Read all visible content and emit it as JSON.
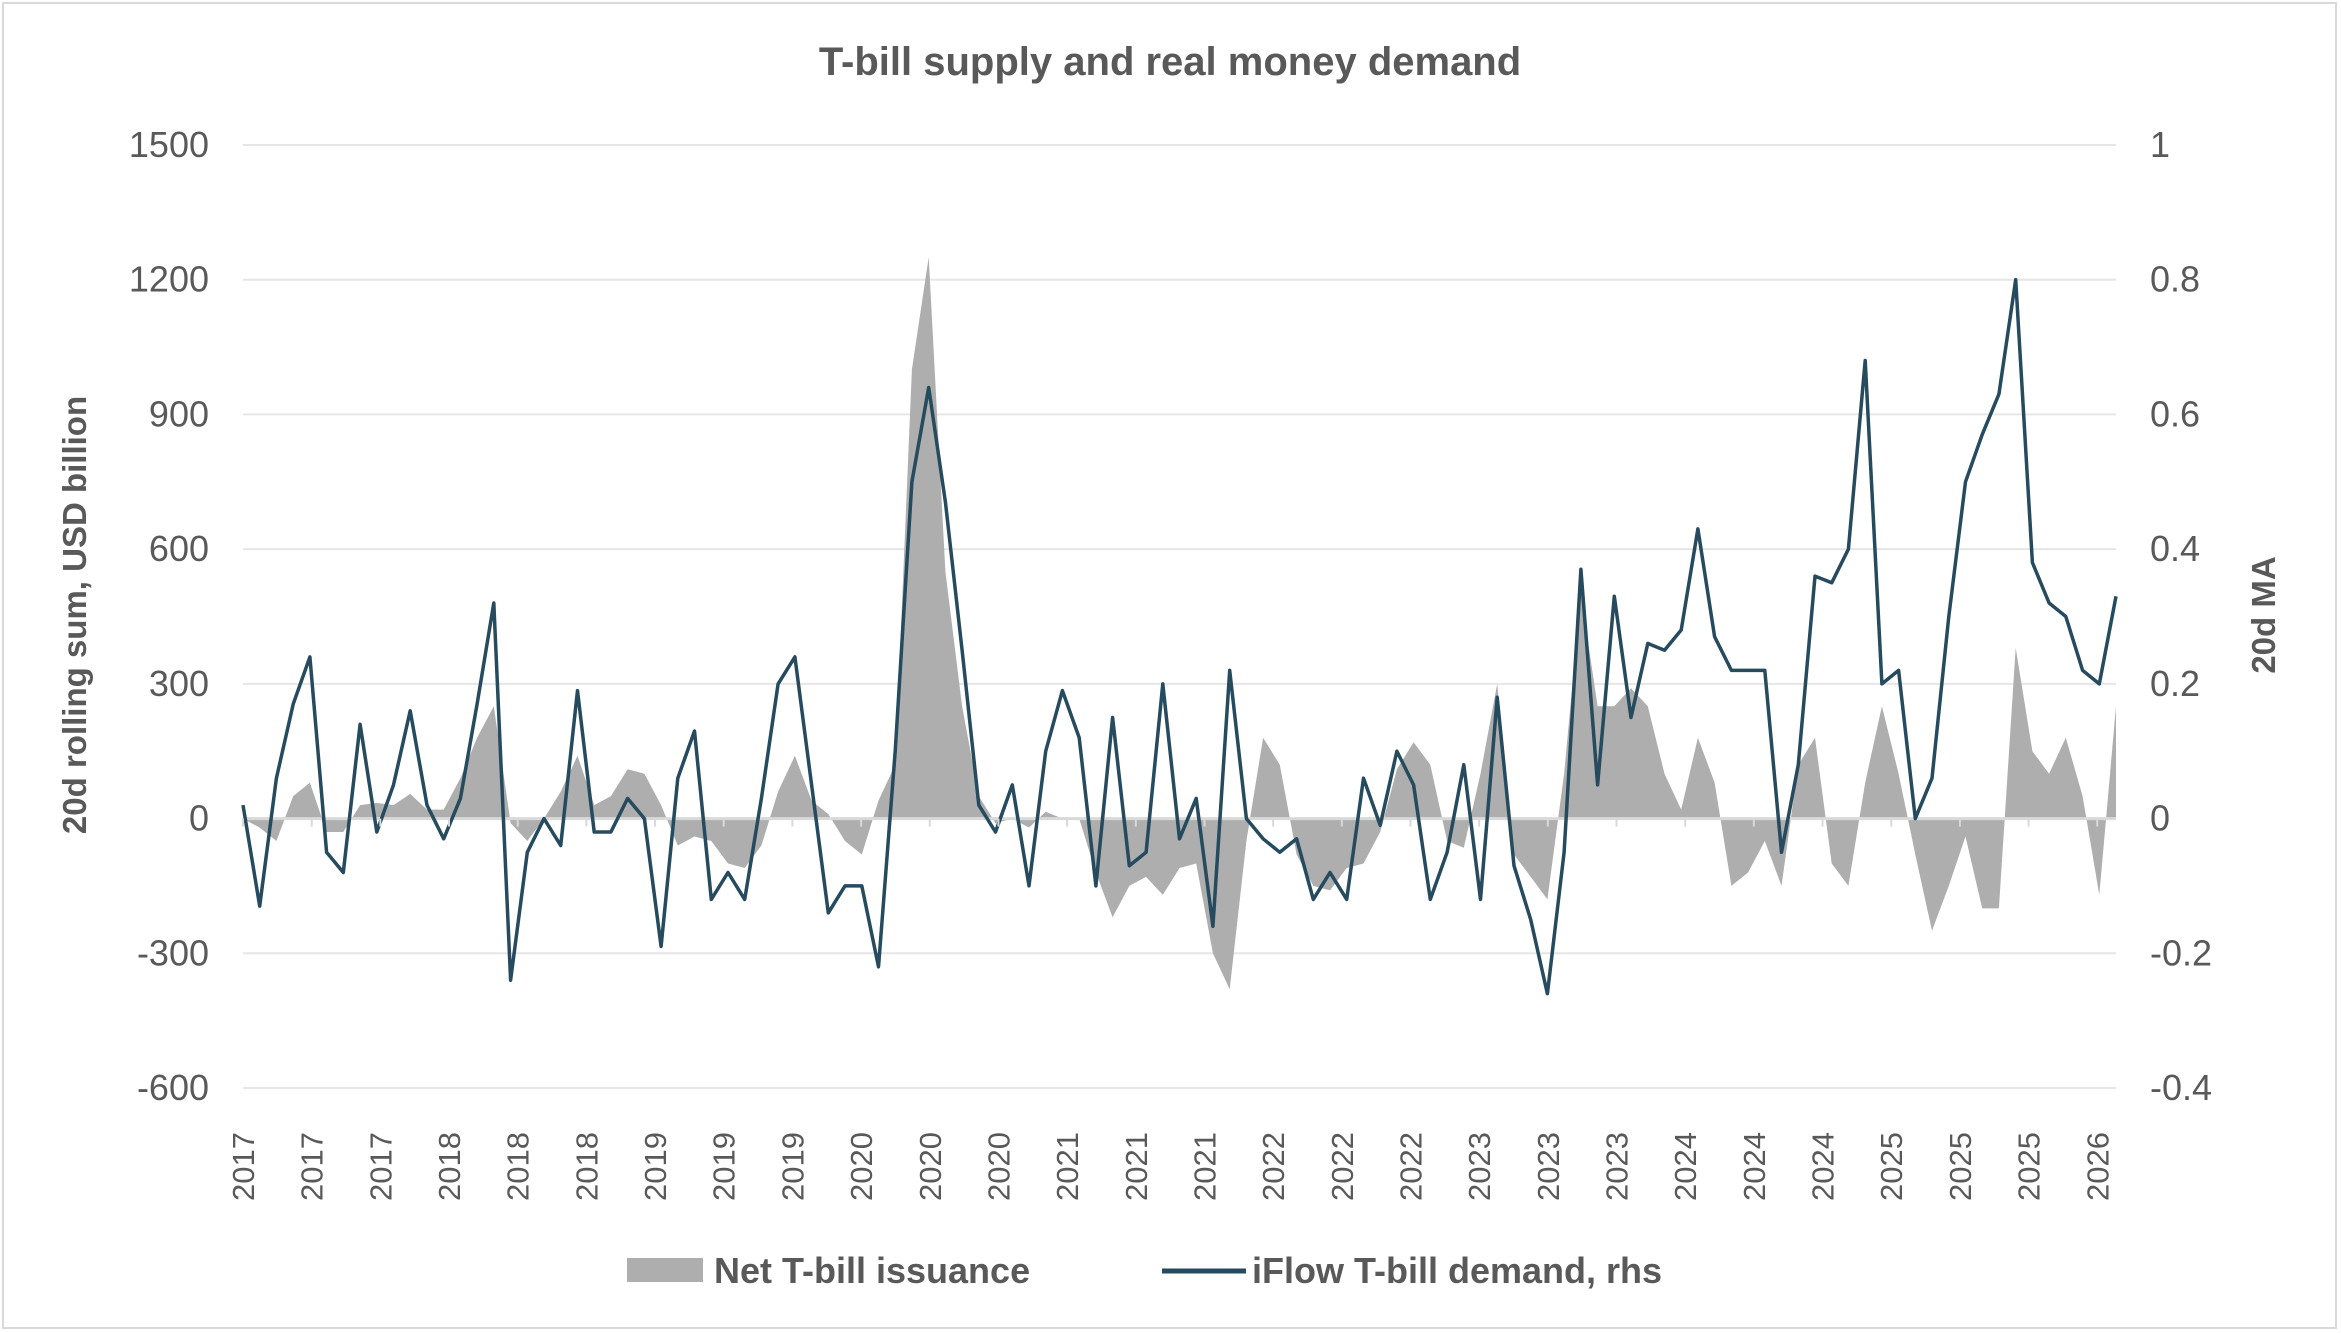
{
  "chart_data": {
    "type": "area+line",
    "title": "T-bill supply and real money demand",
    "ylabel": "20d rolling sum, USD billion",
    "y2label": "20d MA",
    "ylim": [
      -600,
      1500
    ],
    "yticks": [
      -600,
      -300,
      0,
      300,
      600,
      900,
      1200,
      1500
    ],
    "y2lim": [
      -0.4,
      1
    ],
    "y2ticks": [
      -0.4,
      -0.2,
      0,
      0.2,
      0.4,
      0.6,
      0.8,
      1
    ],
    "y2tick_labels": [
      "-0.4",
      "-0.2",
      "0",
      "0.2",
      "0.4",
      "0.6",
      "0.8",
      "1"
    ],
    "xtick_labels": [
      "2017",
      "2017",
      "2017",
      "2018",
      "2018",
      "2018",
      "2019",
      "2019",
      "2019",
      "2020",
      "2020",
      "2020",
      "2021",
      "2021",
      "2021",
      "2022",
      "2022",
      "2022",
      "2023",
      "2023",
      "2023",
      "2024",
      "2024",
      "2024",
      "2025",
      "2025",
      "2025",
      "2026"
    ],
    "grid": true,
    "legend_position": "bottom",
    "dates": [
      "2017-01",
      "2017-02",
      "2017-03",
      "2017-04",
      "2017-05",
      "2017-06",
      "2017-07",
      "2017-08",
      "2017-09",
      "2017-10",
      "2017-11",
      "2017-12",
      "2018-01",
      "2018-02",
      "2018-03",
      "2018-04",
      "2018-05",
      "2018-06",
      "2018-07",
      "2018-08",
      "2018-09",
      "2018-10",
      "2018-11",
      "2018-12",
      "2019-01",
      "2019-02",
      "2019-03",
      "2019-04",
      "2019-05",
      "2019-06",
      "2019-07",
      "2019-08",
      "2019-09",
      "2019-10",
      "2019-11",
      "2019-12",
      "2020-01",
      "2020-02",
      "2020-03",
      "2020-04",
      "2020-05",
      "2020-06",
      "2020-07",
      "2020-08",
      "2020-09",
      "2020-10",
      "2020-11",
      "2020-12",
      "2021-01",
      "2021-02",
      "2021-03",
      "2021-04",
      "2021-05",
      "2021-06",
      "2021-07",
      "2021-08",
      "2021-09",
      "2021-10",
      "2021-11",
      "2021-12",
      "2022-01",
      "2022-02",
      "2022-03",
      "2022-04",
      "2022-05",
      "2022-06",
      "2022-07",
      "2022-08",
      "2022-09",
      "2022-10",
      "2022-11",
      "2022-12",
      "2023-01",
      "2023-02",
      "2023-03",
      "2023-04",
      "2023-05",
      "2023-06",
      "2023-07",
      "2023-08",
      "2023-09",
      "2023-10",
      "2023-11",
      "2023-12",
      "2024-01",
      "2024-02",
      "2024-03",
      "2024-04",
      "2024-05",
      "2024-06",
      "2024-07",
      "2024-08",
      "2024-09",
      "2024-10",
      "2024-11",
      "2024-12",
      "2025-01",
      "2025-02",
      "2025-03",
      "2025-04",
      "2025-05",
      "2025-06",
      "2025-07",
      "2025-08",
      "2025-09",
      "2025-10",
      "2025-11",
      "2025-12",
      "2026-01",
      "2026-02",
      "2026-03",
      "2026-04",
      "2026-05"
    ],
    "series": [
      {
        "name": "Net T-bill issuance",
        "type": "area",
        "axis": "left",
        "color": "#aeaeae",
        "values": [
          0,
          -20,
          -50,
          50,
          80,
          -30,
          -30,
          30,
          35,
          30,
          55,
          20,
          20,
          90,
          180,
          250,
          -10,
          -50,
          0,
          60,
          140,
          30,
          50,
          110,
          100,
          30,
          -60,
          -40,
          -50,
          -100,
          -110,
          -60,
          60,
          140,
          40,
          10,
          -50,
          -80,
          40,
          120,
          1000,
          1250,
          550,
          250,
          50,
          -10,
          0,
          -20,
          15,
          0,
          0,
          -120,
          -220,
          -150,
          -130,
          -170,
          -110,
          -100,
          -300,
          -380,
          -50,
          180,
          120,
          -80,
          -150,
          -160,
          -110,
          -100,
          -30,
          110,
          170,
          120,
          -50,
          -65,
          100,
          300,
          -80,
          -130,
          -180,
          100,
          500,
          250,
          250,
          290,
          250,
          100,
          20,
          180,
          80,
          -150,
          -120,
          -50,
          -150,
          120,
          180,
          -100,
          -150,
          80,
          250,
          100,
          -80,
          -250,
          -150,
          -40,
          -200,
          -200,
          380,
          150,
          100,
          180,
          50,
          -170,
          250
        ]
      },
      {
        "name": "iFlow T-bill demand, rhs",
        "type": "line",
        "axis": "right",
        "color": "#264a5e",
        "values": [
          0.02,
          -0.13,
          0.06,
          0.17,
          0.24,
          -0.05,
          -0.08,
          0.14,
          -0.02,
          0.05,
          0.16,
          0.02,
          -0.03,
          0.03,
          0.17,
          0.32,
          -0.24,
          -0.05,
          0.0,
          -0.04,
          0.19,
          -0.02,
          -0.02,
          0.03,
          0.0,
          -0.19,
          0.06,
          0.13,
          -0.12,
          -0.08,
          -0.12,
          0.03,
          0.2,
          0.24,
          0.05,
          -0.14,
          -0.1,
          -0.1,
          -0.22,
          0.1,
          0.5,
          0.64,
          0.47,
          0.25,
          0.02,
          -0.02,
          0.05,
          -0.1,
          0.1,
          0.19,
          0.12,
          -0.1,
          0.15,
          -0.07,
          -0.05,
          0.2,
          -0.03,
          0.03,
          -0.16,
          0.22,
          0.0,
          -0.03,
          -0.05,
          -0.03,
          -0.12,
          -0.08,
          -0.12,
          0.06,
          -0.01,
          0.1,
          0.05,
          -0.12,
          -0.05,
          0.08,
          -0.12,
          0.18,
          -0.07,
          -0.15,
          -0.26,
          -0.05,
          0.37,
          0.05,
          0.33,
          0.15,
          0.26,
          0.25,
          0.28,
          0.43,
          0.27,
          0.22,
          0.22,
          0.22,
          -0.05,
          0.08,
          0.36,
          0.35,
          0.4,
          0.68,
          0.2,
          0.22,
          0.0,
          0.06,
          0.3,
          0.5,
          0.57,
          0.63,
          0.8,
          0.38,
          0.32,
          0.3,
          0.22,
          0.2,
          0.33
        ]
      }
    ]
  },
  "legend": {
    "items": [
      "Net T-bill issuance",
      "iFlow T-bill demand, rhs"
    ]
  }
}
